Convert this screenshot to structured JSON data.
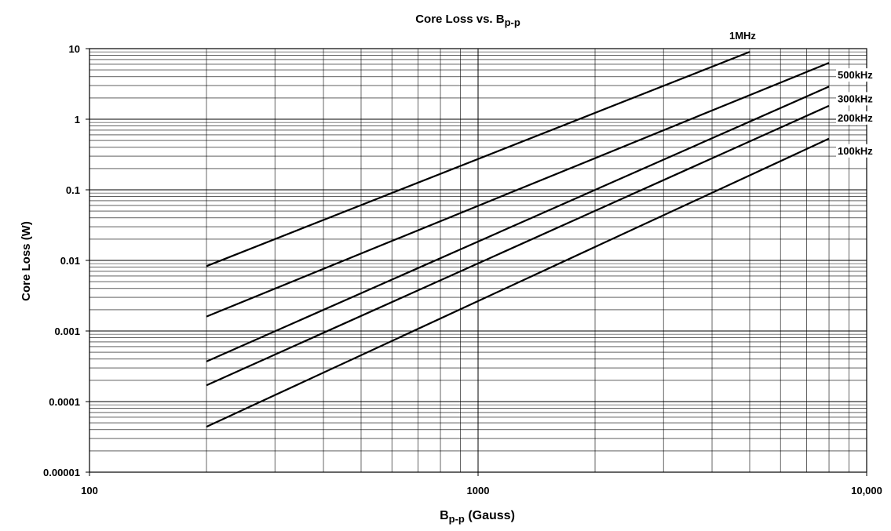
{
  "chart_data": {
    "type": "line",
    "title": "Core Loss vs. B",
    "title_subscript": "p-p",
    "xlabel_main": "B",
    "xlabel_subscript": "p-p",
    "xlabel_suffix": " (Gauss)",
    "ylabel": "Core Loss (W)",
    "x_scale": "log",
    "y_scale": "log",
    "xlim": [
      100,
      10000
    ],
    "ylim": [
      1e-05,
      10
    ],
    "x_ticks": [
      {
        "value": 100,
        "label": "100"
      },
      {
        "value": 1000,
        "label": "1000"
      },
      {
        "value": 10000,
        "label": "10,000"
      }
    ],
    "y_ticks": [
      {
        "value": 10,
        "label": "10"
      },
      {
        "value": 1,
        "label": "1"
      },
      {
        "value": 0.1,
        "label": "0.1"
      },
      {
        "value": 0.01,
        "label": "0.01"
      },
      {
        "value": 0.001,
        "label": "0.001"
      },
      {
        "value": 0.0001,
        "label": "0.0001"
      },
      {
        "value": 1e-05,
        "label": "0.00001"
      }
    ],
    "grid": true,
    "line_color": "#000000",
    "grid_color": "#000000",
    "series": [
      {
        "name": "1MHz",
        "x": [
          200,
          5000
        ],
        "y": [
          0.0083,
          9.0
        ]
      },
      {
        "name": "500kHz",
        "x": [
          200,
          8000
        ],
        "y": [
          0.0016,
          6.3
        ]
      },
      {
        "name": "300kHz",
        "x": [
          200,
          8000
        ],
        "y": [
          0.00037,
          2.9
        ]
      },
      {
        "name": "200kHz",
        "x": [
          200,
          8000
        ],
        "y": [
          0.00017,
          1.55
        ]
      },
      {
        "name": "100kHz",
        "x": [
          200,
          8000
        ],
        "y": [
          4.4e-05,
          0.53
        ]
      }
    ]
  }
}
